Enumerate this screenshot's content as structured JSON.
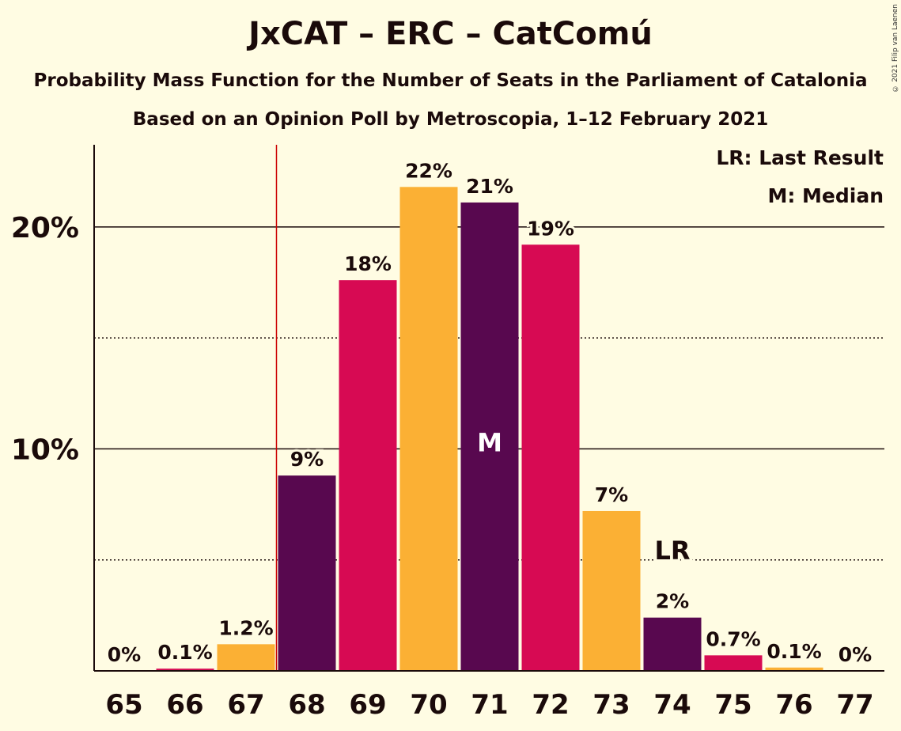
{
  "chart_data": {
    "type": "bar",
    "title": "JxCAT – ERC – CatComú",
    "subtitle": "Probability Mass Function for the Number of Seats in the Parliament of Catalonia",
    "subtitle2": "Based on an Opinion Poll by Metroscopia, 1–12 February 2021",
    "copyright": "© 2021 Filip van Laenen",
    "categories": [
      "65",
      "66",
      "67",
      "68",
      "69",
      "70",
      "71",
      "72",
      "73",
      "74",
      "75",
      "76",
      "77"
    ],
    "values": [
      0,
      0.1,
      1.2,
      8.8,
      17.6,
      21.8,
      21.1,
      19.2,
      7.2,
      2.4,
      0.7,
      0.15,
      0
    ],
    "value_labels": [
      "0%",
      "0.1%",
      "1.2%",
      "9%",
      "18%",
      "22%",
      "21%",
      "19%",
      "7%",
      "2%",
      "0.7%",
      "0.1%",
      "0%"
    ],
    "colors": [
      "#D70A53",
      "#D70A53",
      "#FBB034",
      "#58084F",
      "#D70A53",
      "#FBB034",
      "#58084F",
      "#D70A53",
      "#FBB034",
      "#58084F",
      "#D70A53",
      "#FBB034",
      "#58084F"
    ],
    "ylim": [
      0,
      23.7
    ],
    "yticks": [
      {
        "value": 10,
        "label": "10%"
      },
      {
        "value": 20,
        "label": "20%"
      }
    ],
    "minor_gridlines": [
      5,
      15
    ],
    "last_result_seat": "74",
    "last_result_label": "LR",
    "median_seat": "71",
    "median_label": "M",
    "legend": [
      "LR: Last Result",
      "M: Median"
    ],
    "legend_position": "top-right",
    "threshold_line_color": "#CC0000"
  }
}
